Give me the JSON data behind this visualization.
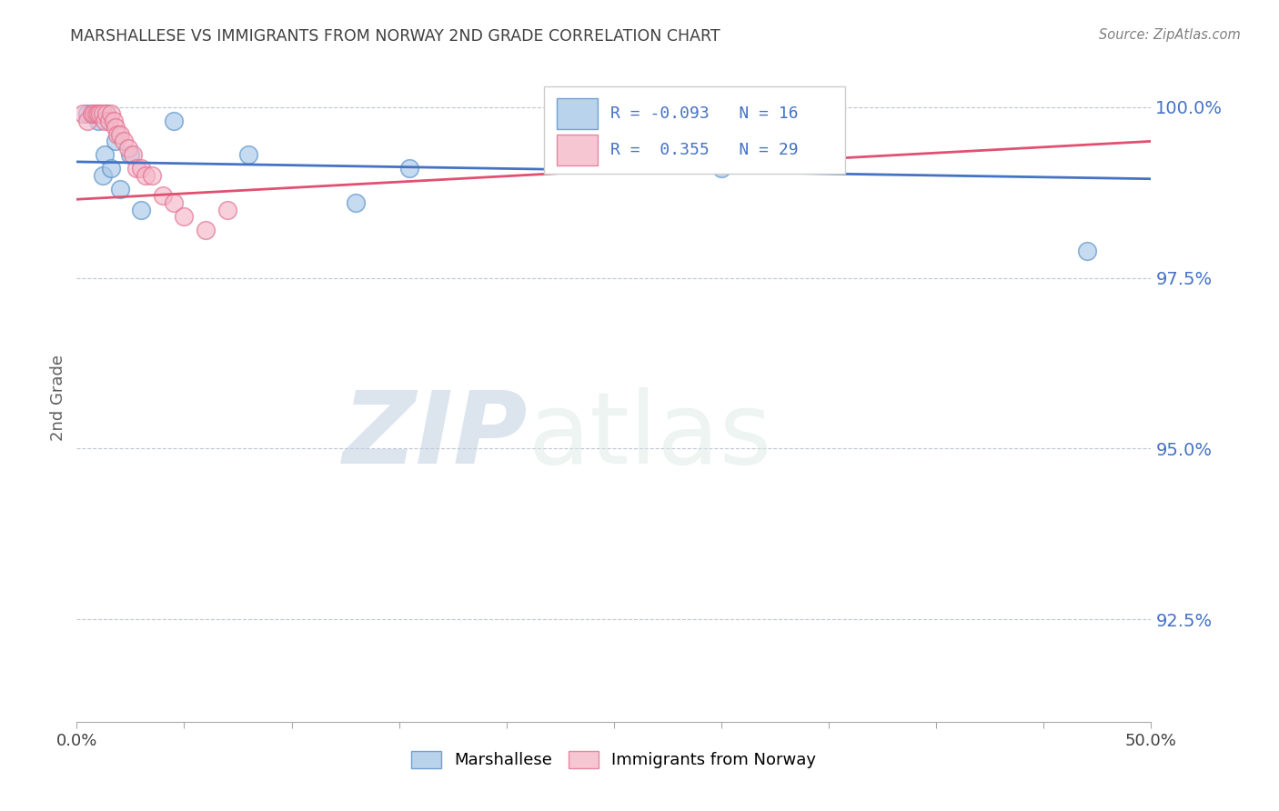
{
  "title": "MARSHALLESE VS IMMIGRANTS FROM NORWAY 2ND GRADE CORRELATION CHART",
  "source": "Source: ZipAtlas.com",
  "ylabel": "2nd Grade",
  "xlim": [
    0.0,
    0.5
  ],
  "ylim": [
    0.91,
    1.005
  ],
  "ytick_positions": [
    0.925,
    0.95,
    0.975,
    1.0
  ],
  "ytick_labels": [
    "92.5%",
    "95.0%",
    "97.5%",
    "100.0%"
  ],
  "xtick_positions": [
    0.0,
    0.05,
    0.1,
    0.15,
    0.2,
    0.25,
    0.3,
    0.35,
    0.4,
    0.45,
    0.5
  ],
  "xtick_labels": [
    "0.0%",
    "",
    "",
    "",
    "",
    "",
    "",
    "",
    "",
    "",
    "50.0%"
  ],
  "legend_blue_R": "-0.093",
  "legend_blue_N": "16",
  "legend_pink_R": "0.355",
  "legend_pink_N": "29",
  "blue_scatter_color": "#a8c8e8",
  "blue_scatter_edge": "#5590c8",
  "pink_scatter_color": "#f5b8c8",
  "pink_scatter_edge": "#e07090",
  "blue_line_color": "#4472c4",
  "pink_line_color": "#e05070",
  "watermark_zip": "ZIP",
  "watermark_atlas": "atlas",
  "grid_color": "#b0b8c8",
  "background_color": "#ffffff",
  "title_color": "#404040",
  "source_color": "#808080",
  "ylabel_color": "#606060",
  "ytick_color": "#4472c4",
  "xtick_color": "#404040",
  "blue_points_x": [
    0.005,
    0.01,
    0.012,
    0.013,
    0.014,
    0.016,
    0.018,
    0.02,
    0.025,
    0.03,
    0.045,
    0.08,
    0.13,
    0.155,
    0.3,
    0.47
  ],
  "blue_points_y": [
    0.999,
    0.998,
    0.99,
    0.993,
    0.999,
    0.991,
    0.995,
    0.988,
    0.993,
    0.985,
    0.998,
    0.993,
    0.986,
    0.991,
    0.991,
    0.979
  ],
  "pink_points_x": [
    0.003,
    0.005,
    0.007,
    0.008,
    0.009,
    0.01,
    0.011,
    0.012,
    0.013,
    0.014,
    0.015,
    0.016,
    0.017,
    0.018,
    0.019,
    0.02,
    0.022,
    0.024,
    0.026,
    0.028,
    0.03,
    0.032,
    0.035,
    0.04,
    0.045,
    0.05,
    0.06,
    0.07,
    0.35
  ],
  "pink_points_y": [
    0.999,
    0.998,
    0.999,
    0.999,
    0.999,
    0.999,
    0.999,
    0.999,
    0.998,
    0.999,
    0.998,
    0.999,
    0.998,
    0.997,
    0.996,
    0.996,
    0.995,
    0.994,
    0.993,
    0.991,
    0.991,
    0.99,
    0.99,
    0.987,
    0.986,
    0.984,
    0.982,
    0.985,
    0.999
  ],
  "blue_trendline_y": [
    0.992,
    0.9895
  ],
  "pink_trendline_y": [
    0.9865,
    0.995
  ]
}
